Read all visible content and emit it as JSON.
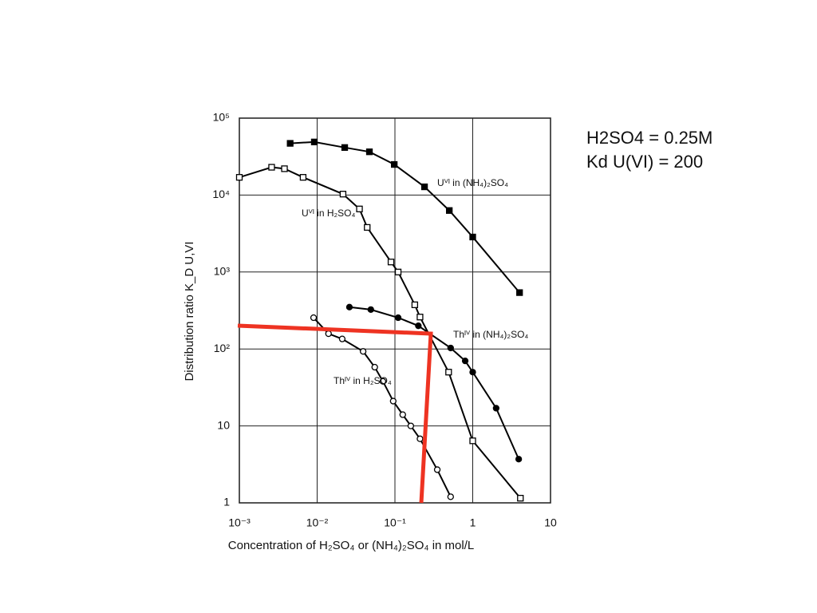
{
  "chart_data": {
    "type": "line",
    "xlabel": "Concentration of H₂SO₄ or (NH₄)₂SO₄ in mol/L",
    "ylabel": "Distribution ratio K_D U,VI",
    "xscale": "log",
    "yscale": "log",
    "grid": true,
    "xlim": [
      0.001,
      10
    ],
    "ylim": [
      1,
      100000
    ],
    "xticks": [
      {
        "value": 0.001,
        "label": "10⁻³"
      },
      {
        "value": 0.01,
        "label": "10⁻²"
      },
      {
        "value": 0.1,
        "label": "10⁻¹"
      },
      1,
      10
    ],
    "yticks": [
      1,
      10,
      {
        "value": 100,
        "label": "10²"
      },
      {
        "value": 1000,
        "label": "10³"
      },
      {
        "value": 10000,
        "label": "10⁴"
      },
      {
        "value": 100000,
        "label": "10⁵"
      }
    ],
    "series": [
      {
        "name": "Uⱽᴵ in (NH₄)₂SO₄",
        "color": "#000000",
        "marker": "filled-square",
        "x": [
          0.0045,
          0.0092,
          0.0226,
          0.047,
          0.098,
          0.24,
          0.5,
          1.0,
          4
        ],
        "values": [
          47000,
          49000,
          41500,
          36500,
          25000,
          12800,
          6300,
          2850,
          540
        ]
      },
      {
        "name": "Uⱽᴵ in H₂SO₄",
        "color": "#000000",
        "marker": "open-square",
        "x": [
          0.001,
          0.0026,
          0.0038,
          0.0066,
          0.0215,
          0.035,
          0.044,
          0.089,
          0.11,
          0.18,
          0.21,
          0.49,
          1.0,
          4.1
        ],
        "values": [
          17000,
          23000,
          22000,
          17000,
          10300,
          6600,
          3800,
          1350,
          1000,
          375,
          260,
          50,
          6.4,
          1.15
        ]
      },
      {
        "name": "Thᴵⱽ in (NH₄)₂SO₄",
        "color": "#000000",
        "marker": "filled-circle",
        "x": [
          0.026,
          0.049,
          0.11,
          0.2,
          0.52,
          0.8,
          1.0,
          2.0,
          3.9
        ],
        "values": [
          350,
          325,
          255,
          200,
          103,
          70,
          50,
          17,
          3.7
        ]
      },
      {
        "name": "Thᴵⱽ in H₂SO₄",
        "color": "#000000",
        "marker": "open-circle",
        "x": [
          0.009,
          0.014,
          0.021,
          0.039,
          0.055,
          0.07,
          0.095,
          0.126,
          0.16,
          0.21,
          0.35,
          0.52
        ],
        "values": [
          255,
          158,
          135,
          93,
          58,
          38,
          21,
          14,
          10,
          6.8,
          2.7,
          1.2
        ]
      }
    ],
    "annotations": [
      "H2SO4 = 0.25M",
      "Kd U(VI) = 200"
    ]
  }
}
